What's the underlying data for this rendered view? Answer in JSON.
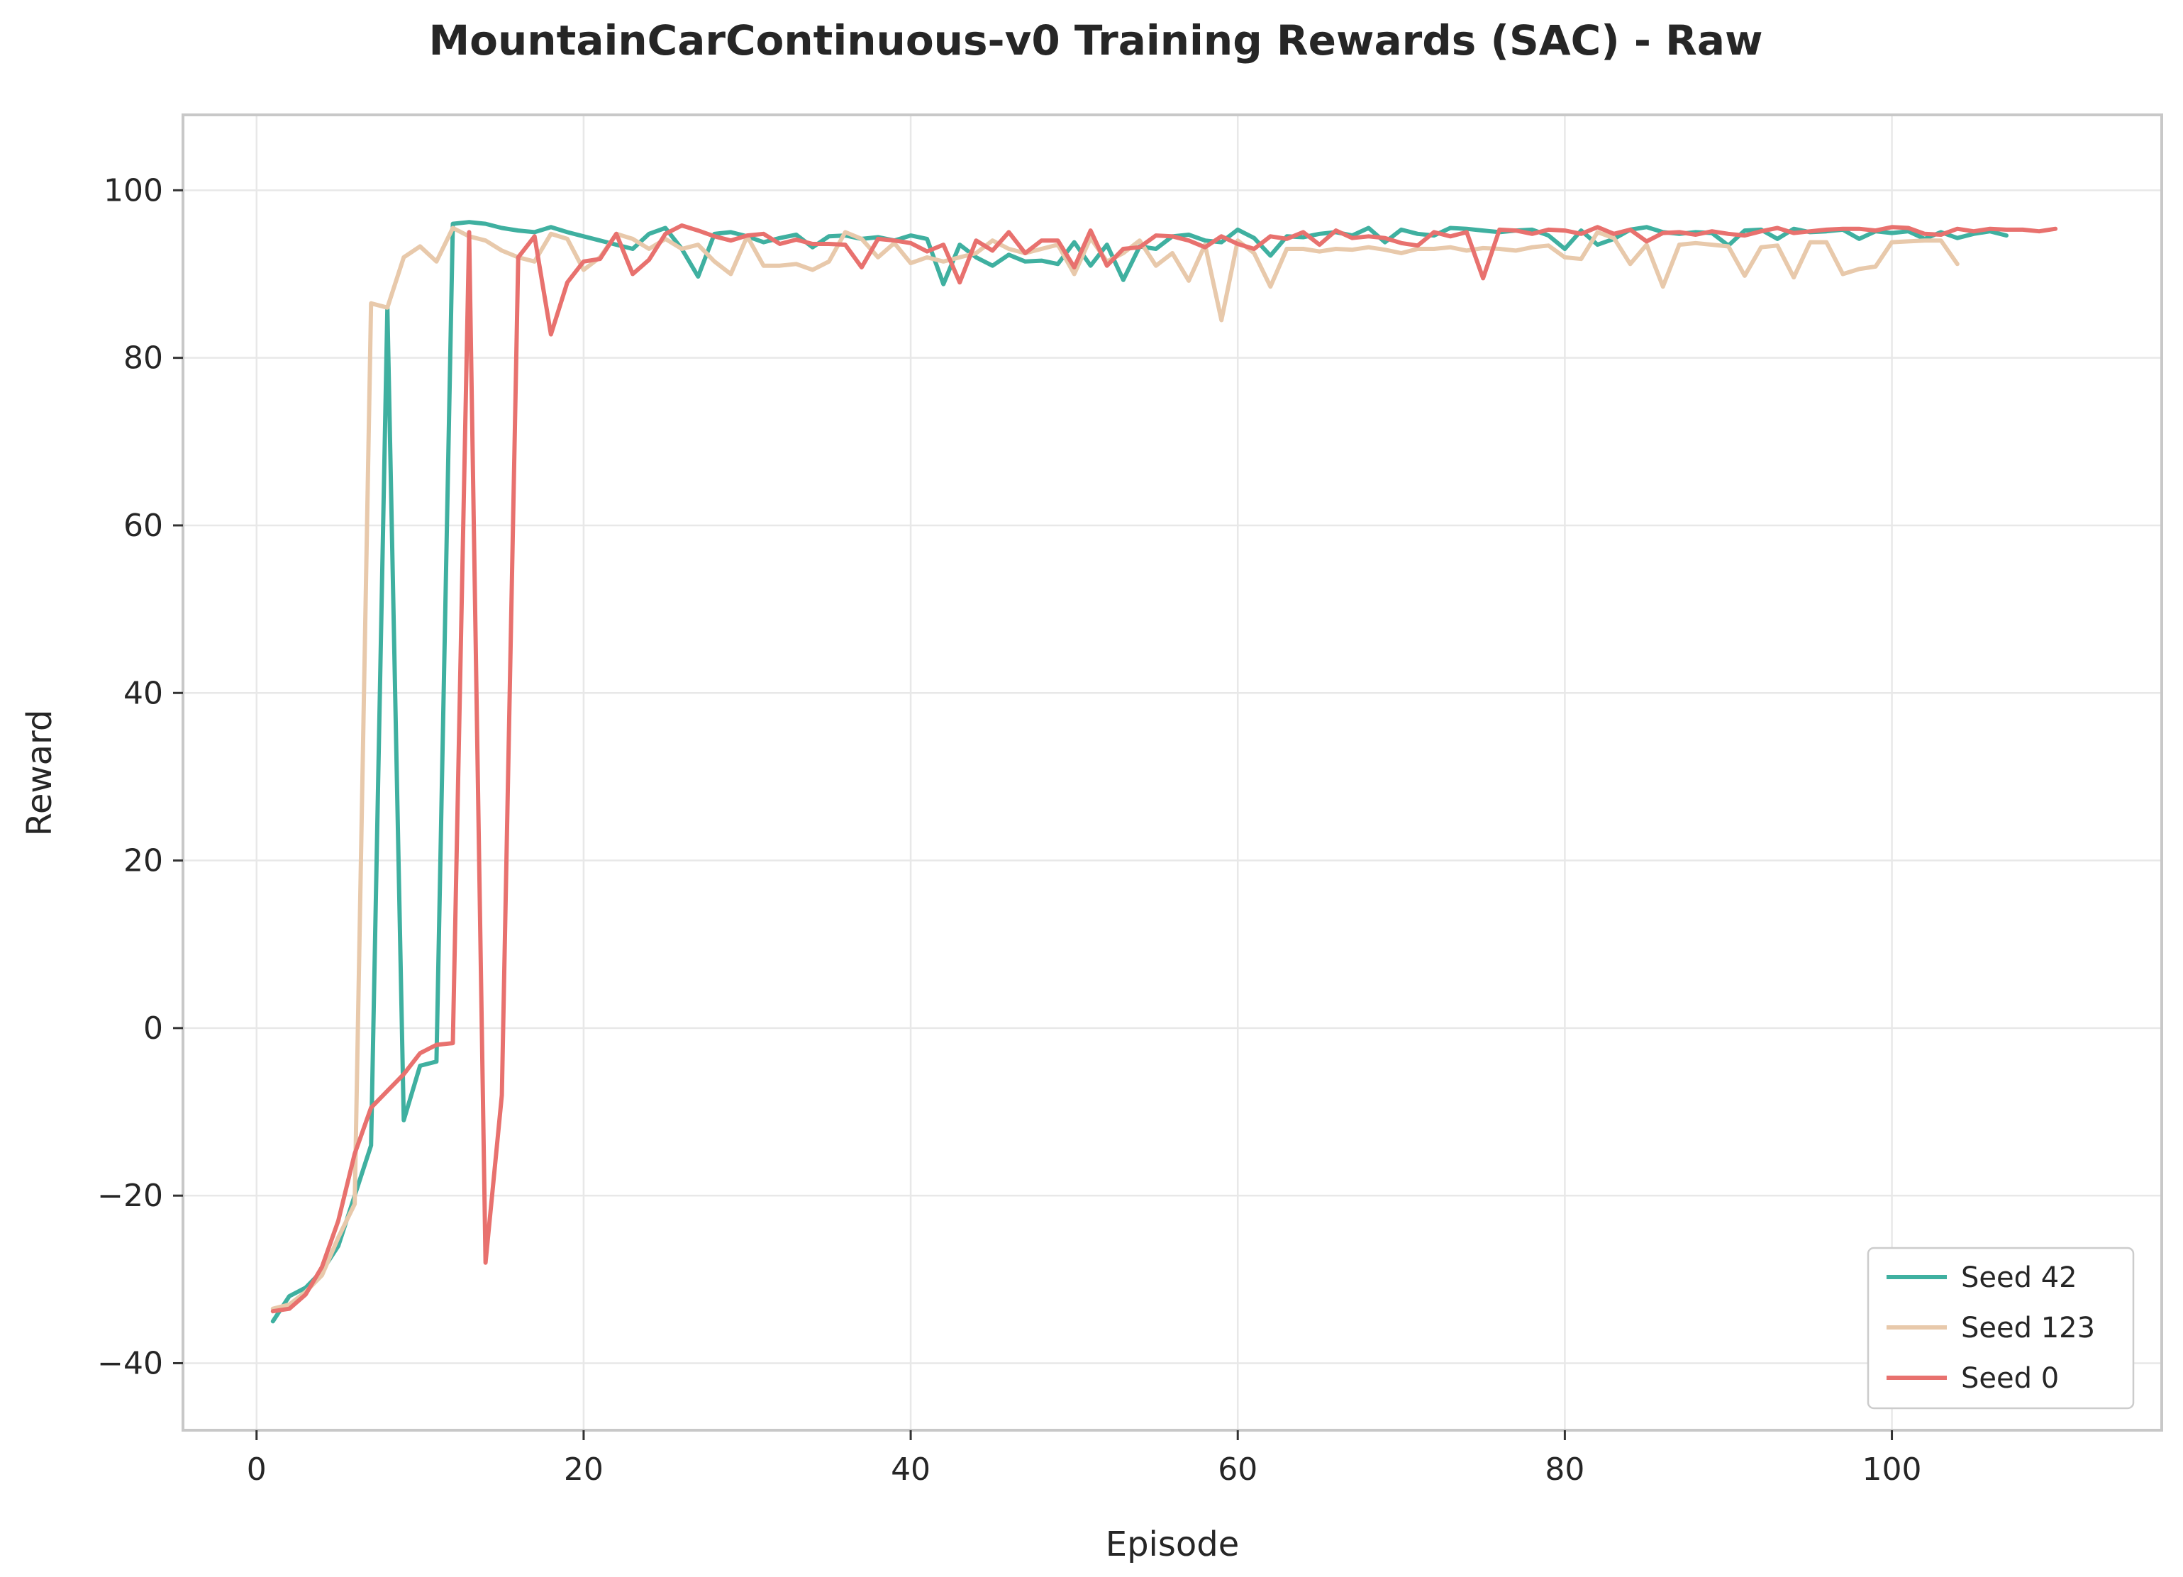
{
  "chart_data": {
    "type": "line",
    "title": "MountainCarContinuous-v0 Training Rewards (SAC) - Raw",
    "xlabel": "Episode",
    "ylabel": "Reward",
    "xlim": [
      -4.5,
      116.5
    ],
    "ylim": [
      -48,
      109
    ],
    "x_ticks": [
      0,
      20,
      40,
      60,
      80,
      100
    ],
    "x_tick_labels": [
      "0",
      "20",
      "40",
      "60",
      "80",
      "100"
    ],
    "y_ticks": [
      -40,
      -20,
      0,
      20,
      40,
      60,
      80,
      100
    ],
    "y_tick_labels": [
      "−40",
      "−20",
      "0",
      "20",
      "40",
      "60",
      "80",
      "100"
    ],
    "grid": true,
    "legend_position": "bottom-right",
    "series": [
      {
        "name": "Seed 42",
        "color": "#3fb0a0",
        "x_start": 1,
        "values": [
          -35,
          -32,
          -31,
          -29,
          -26,
          -20,
          -14,
          86,
          -11,
          -4.5,
          -4,
          96,
          96.2,
          96,
          95.5,
          95.2,
          95,
          95.6,
          95,
          94.5,
          94,
          93.5,
          93,
          94.8,
          95.5,
          93,
          89.7,
          94.8,
          95,
          94.5,
          93.8,
          94.3,
          94.7,
          93.2,
          94.5,
          94.6,
          94.2,
          94.4,
          94,
          94.6,
          94.2,
          88.8,
          93.5,
          92,
          91,
          92.3,
          91.5,
          91.6,
          91.2,
          93.8,
          91,
          93.5,
          89.3,
          93.3,
          93,
          94.5,
          94.7,
          94,
          93.8,
          95.3,
          94.3,
          92.2,
          94.5,
          94.4,
          94.8,
          95,
          94.6,
          95.5,
          93.8,
          95.3,
          94.8,
          94.6,
          95.5,
          95.4,
          95.2,
          95,
          95.2,
          95.3,
          94.6,
          93,
          95.2,
          93.5,
          94.2,
          95.3,
          95.6,
          95,
          94.8,
          95,
          94.9,
          93.4,
          95.2,
          95.3,
          94.2,
          95.4,
          95,
          95.1,
          95.3,
          94.2,
          95.1,
          94.9,
          95.1,
          94.2,
          95,
          94.3,
          94.8,
          95.1,
          94.6
        ]
      },
      {
        "name": "Seed 123",
        "color": "#e8c9ab",
        "x_start": 1,
        "values": [
          -33.5,
          -33,
          -31.5,
          -29.5,
          -25,
          -21,
          86.5,
          86,
          92,
          93.3,
          91.5,
          95.5,
          94.5,
          94,
          92.8,
          92,
          91.5,
          94.8,
          94.2,
          90.5,
          92,
          94.8,
          94.2,
          93,
          94.2,
          93,
          93.5,
          91.5,
          90,
          94.5,
          91,
          91,
          91.2,
          90.5,
          91.5,
          95,
          94.2,
          92,
          93.7,
          91.3,
          92,
          91.5,
          92,
          92.5,
          94,
          93,
          92.5,
          93,
          93.5,
          90,
          94.3,
          91.5,
          92.5,
          94,
          91,
          92.5,
          89.2,
          93.5,
          84.5,
          94,
          92.5,
          88.5,
          93,
          93,
          92.7,
          93,
          92.9,
          93.2,
          92.9,
          92.5,
          93,
          93,
          93.2,
          92.8,
          93.1,
          93,
          92.8,
          93.2,
          93.4,
          92,
          91.8,
          95,
          94.3,
          91.2,
          93.5,
          88.5,
          93.5,
          93.7,
          93.5,
          93.3,
          89.8,
          93.2,
          93.4,
          89.6,
          93.8,
          93.8,
          90,
          90.6,
          90.9,
          93.8,
          93.9,
          94,
          94,
          91.2
        ]
      },
      {
        "name": "Seed 0",
        "color": "#e8716e",
        "x_start": 1,
        "values": [
          -33.8,
          -33.5,
          -31.8,
          -28.5,
          -23,
          -15,
          -9.5,
          -7.5,
          -5.5,
          -3,
          -2,
          -1.8,
          95,
          -28,
          -8,
          92,
          94.5,
          82.8,
          89,
          91.5,
          91.8,
          94.8,
          90,
          91.7,
          94.8,
          95.8,
          95.2,
          94.5,
          94,
          94.6,
          94.8,
          93.6,
          94.1,
          93.6,
          93.6,
          93.5,
          90.8,
          94.2,
          94,
          93.7,
          92.7,
          93.5,
          89,
          94,
          92.8,
          95,
          92.5,
          94,
          94,
          90.8,
          95.2,
          91,
          93,
          93.2,
          94.6,
          94.5,
          94,
          93.2,
          94.5,
          93.6,
          93,
          94.5,
          94.2,
          95,
          93.5,
          95.2,
          94.3,
          94.5,
          94.3,
          93.7,
          93.4,
          95,
          94.5,
          95,
          89.5,
          95.3,
          95.2,
          94.8,
          95.3,
          95.2,
          94.8,
          95.6,
          94.8,
          95.3,
          93.9,
          94.9,
          95,
          94.7,
          95.1,
          94.8,
          94.6,
          95.1,
          95.5,
          94.9,
          95.1,
          95.3,
          95.4,
          95.4,
          95.2,
          95.6,
          95.5,
          94.8,
          94.7,
          95.4,
          95.1,
          95.4,
          95.3,
          95.3,
          95.1,
          95.4
        ]
      }
    ]
  }
}
